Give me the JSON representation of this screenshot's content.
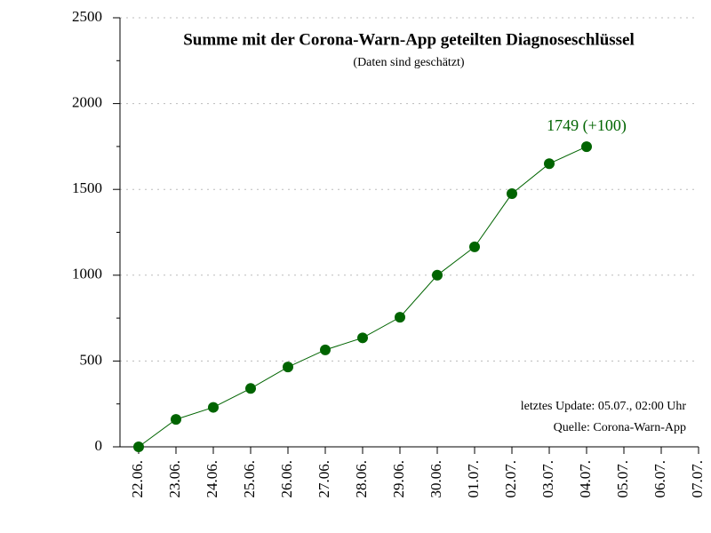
{
  "chart_data": {
    "type": "line",
    "title": "Summe mit der Corona-Warn-App geteilten Diagnoseschlüssel",
    "subtitle": "(Daten sind geschätzt)",
    "categories": [
      "22.06.",
      "23.06.",
      "24.06.",
      "25.06.",
      "26.06.",
      "27.06.",
      "28.06.",
      "29.06.",
      "30.06.",
      "01.07.",
      "02.07.",
      "03.07.",
      "04.07.",
      "05.07.",
      "06.07.",
      "07.07."
    ],
    "series": [
      {
        "name": "Diagnoseschlüssel",
        "color": "#006400",
        "values": [
          0,
          160,
          230,
          340,
          465,
          565,
          635,
          755,
          1000,
          1165,
          1475,
          1650,
          1749,
          null,
          null,
          null
        ]
      }
    ],
    "ylim": [
      0,
      2500
    ],
    "yticks": [
      0,
      500,
      1000,
      1500,
      2000,
      2500
    ],
    "yminorticks": [
      250,
      750,
      1250,
      1750,
      2250
    ],
    "grid": true,
    "annotations": [
      "1749 (+100)",
      "letztes Update: 05.07., 02:00 Uhr",
      "Quelle: Corona-Warn-App"
    ]
  }
}
